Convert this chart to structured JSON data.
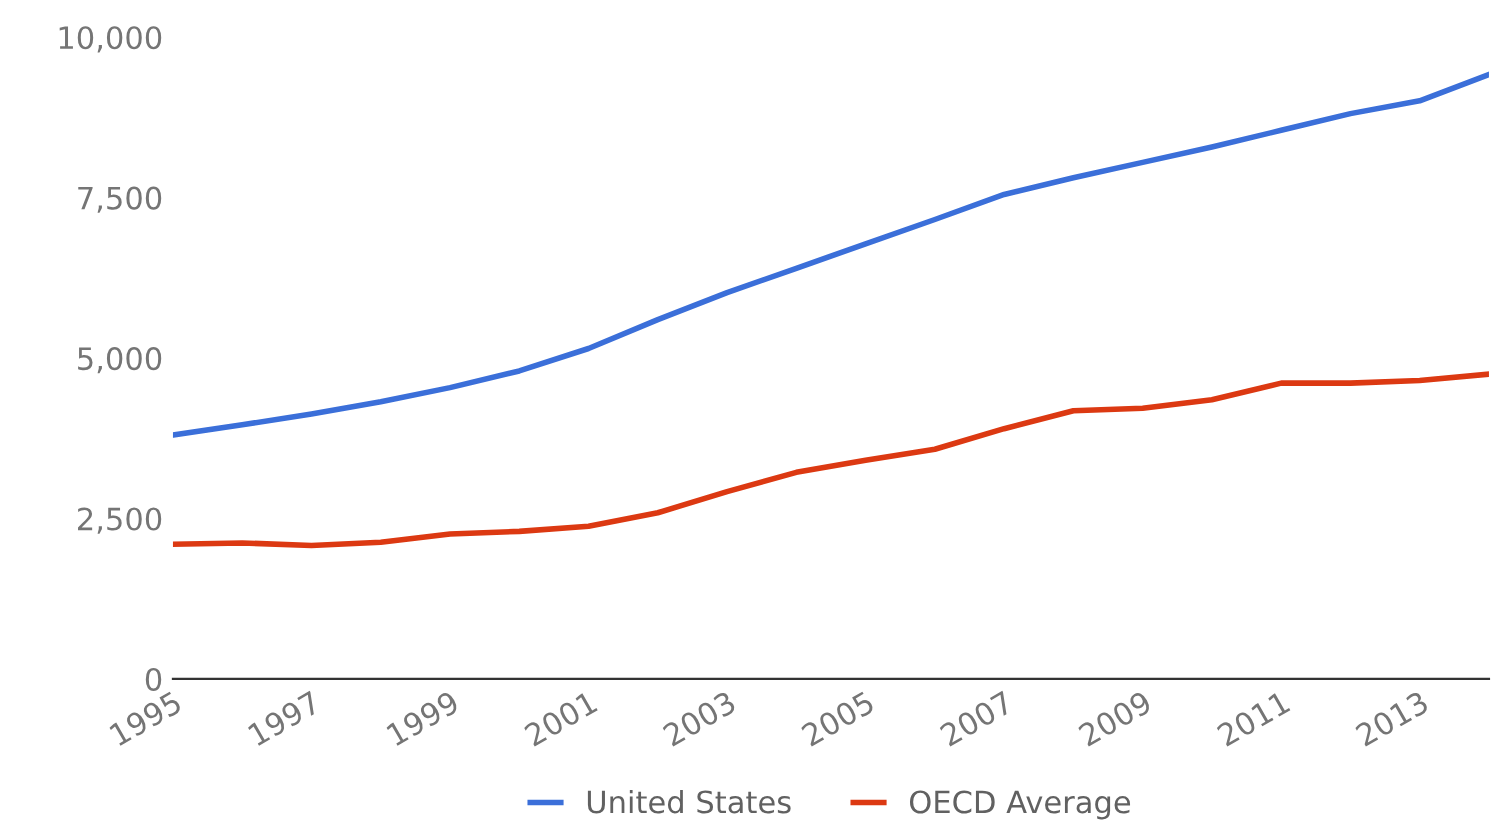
{
  "chart_data": {
    "type": "line",
    "x": [
      1995,
      1996,
      1997,
      1998,
      1999,
      2000,
      2001,
      2002,
      2003,
      2004,
      2005,
      2006,
      2007,
      2008,
      2009,
      2010,
      2011,
      2012,
      2013,
      2014
    ],
    "series": [
      {
        "name": "United States",
        "color": "#3b6fd9",
        "values": [
          3800,
          3960,
          4130,
          4320,
          4540,
          4800,
          5150,
          5600,
          6020,
          6400,
          6780,
          7160,
          7550,
          7810,
          8050,
          8290,
          8550,
          8810,
          9010,
          9420
        ]
      },
      {
        "name": "OECD Average",
        "color": "#dc3912",
        "values": [
          2100,
          2120,
          2080,
          2130,
          2260,
          2300,
          2380,
          2590,
          2920,
          3220,
          3410,
          3580,
          3900,
          4180,
          4220,
          4350,
          4610,
          4610,
          4650,
          4750
        ]
      }
    ],
    "xlim": [
      1995,
      2014
    ],
    "xticks": [
      1995,
      1997,
      1999,
      2001,
      2003,
      2005,
      2007,
      2009,
      2011,
      2013
    ],
    "ylim": [
      0,
      10000
    ],
    "yticks": [
      0,
      {
        "value": 2500,
        "label": "2,500"
      },
      {
        "value": 5000,
        "label": "5,000"
      },
      {
        "value": 7500,
        "label": "7,500"
      },
      {
        "value": 10000,
        "label": "10,000"
      }
    ],
    "grid": false,
    "legend": "bottom",
    "marker": "none",
    "line_style": "solid"
  }
}
